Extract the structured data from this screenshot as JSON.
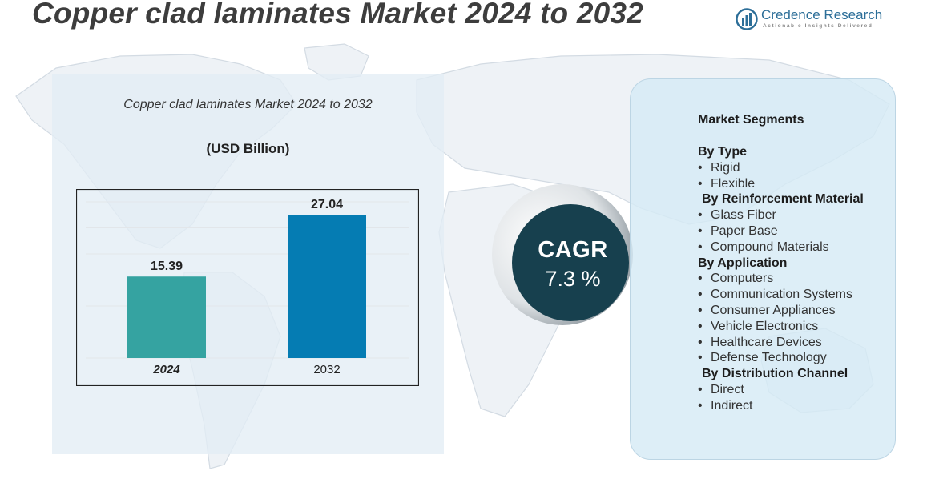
{
  "header": {
    "title": "Copper clad laminates Market 2024 to 2032",
    "brand_name": "Credence Research",
    "brand_tagline": "Actionable Insights Delivered"
  },
  "chart_data": {
    "type": "bar",
    "title": "Copper clad laminates Market 2024 to 2032",
    "unit": "(USD Billion)",
    "categories": [
      "2024",
      "2032"
    ],
    "values": [
      15.39,
      27.04
    ],
    "value_labels": [
      "15.39",
      "27.04"
    ],
    "colors": [
      "#35a3a1",
      "#057cb3"
    ],
    "xlabel": "",
    "ylabel": "",
    "ylim": [
      0,
      31
    ],
    "grid": true,
    "legend": "none"
  },
  "cagr": {
    "label": "CAGR",
    "value": "7.3 %"
  },
  "segments": {
    "title": "Market Segments",
    "groups": [
      {
        "heading": "By Type",
        "items": [
          "Rigid",
          "Flexible"
        ]
      },
      {
        "heading": "By Reinforcement Material",
        "items": [
          "Glass Fiber",
          "Paper Base",
          "Compound Materials"
        ]
      },
      {
        "heading": "By Application",
        "items": [
          "Computers",
          "Communication Systems",
          "Consumer Appliances",
          "Vehicle Electronics",
          "Healthcare Devices",
          "Defense Technology"
        ]
      },
      {
        "heading": "By Distribution Channel",
        "items": [
          "Direct",
          "Indirect"
        ]
      }
    ]
  },
  "colors": {
    "title_text": "#3d3d3d",
    "brand": "#2c6e98",
    "chart_panel": "#e3edf5",
    "segment_panel": "#d6eaf5",
    "cagr_circle": "#17404e"
  },
  "icons": [
    "brand-logo-icon",
    "world-map-icon",
    "bullet-icon"
  ]
}
